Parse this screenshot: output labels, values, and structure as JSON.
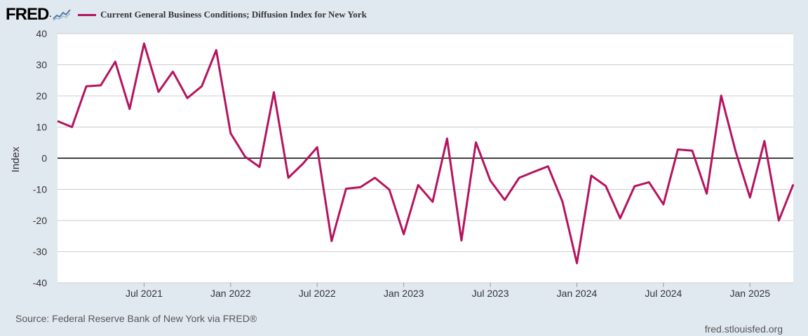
{
  "header": {
    "logo_text": "FRED",
    "logo_icon": "line-chart-icon"
  },
  "colors": {
    "background": "#e1e9f0",
    "plot_background": "#ffffff",
    "series": "#b5135f",
    "grid": "#cccccc",
    "zero_line": "#000000"
  },
  "footer": {
    "source": "Source: Federal Reserve Bank of New York via FRED®",
    "site": "fred.stlouisfed.org"
  },
  "chart_data": {
    "type": "line",
    "title": "",
    "xlabel": "",
    "ylabel": "Index",
    "ylim": [
      -40,
      40
    ],
    "xlim": [
      "2021-01",
      "2025-04"
    ],
    "yticks": [
      40,
      30,
      20,
      10,
      0,
      -10,
      -20,
      -30,
      -40
    ],
    "xticks": [
      {
        "date": "2021-07",
        "label": "Jul 2021"
      },
      {
        "date": "2022-01",
        "label": "Jan 2022"
      },
      {
        "date": "2022-07",
        "label": "Jul 2022"
      },
      {
        "date": "2023-01",
        "label": "Jan 2023"
      },
      {
        "date": "2023-07",
        "label": "Jul 2023"
      },
      {
        "date": "2024-01",
        "label": "Jan 2024"
      },
      {
        "date": "2024-07",
        "label": "Jul 2024"
      },
      {
        "date": "2025-01",
        "label": "Jan 2025"
      }
    ],
    "grid": true,
    "legend_position": "top-left",
    "series": [
      {
        "name": "Current General Business Conditions; Diffusion Index for New York",
        "x": [
          "2021-01",
          "2021-02",
          "2021-03",
          "2021-04",
          "2021-05",
          "2021-06",
          "2021-07",
          "2021-08",
          "2021-09",
          "2021-10",
          "2021-11",
          "2021-12",
          "2022-01",
          "2022-02",
          "2022-03",
          "2022-04",
          "2022-05",
          "2022-06",
          "2022-07",
          "2022-08",
          "2022-09",
          "2022-10",
          "2022-11",
          "2022-12",
          "2023-01",
          "2023-02",
          "2023-03",
          "2023-04",
          "2023-05",
          "2023-06",
          "2023-07",
          "2023-08",
          "2023-09",
          "2023-10",
          "2023-11",
          "2023-12",
          "2024-01",
          "2024-02",
          "2024-03",
          "2024-04",
          "2024-05",
          "2024-06",
          "2024-07",
          "2024-08",
          "2024-09",
          "2024-10",
          "2024-11",
          "2024-12",
          "2025-01",
          "2025-02",
          "2025-03",
          "2025-04"
        ],
        "y": [
          11.9,
          10.0,
          23.1,
          23.4,
          31.0,
          15.8,
          36.8,
          21.3,
          27.8,
          19.3,
          23.1,
          34.7,
          8.0,
          0.5,
          -2.8,
          21.2,
          -6.3,
          -1.8,
          3.5,
          -26.6,
          -9.8,
          -9.3,
          -6.3,
          -10.1,
          -24.4,
          -8.6,
          -14.0,
          6.3,
          -26.4,
          5.1,
          -7.2,
          -13.4,
          -6.3,
          -4.4,
          -2.6,
          -13.9,
          -33.7,
          -5.6,
          -8.9,
          -19.3,
          -9.0,
          -7.7,
          -14.8,
          2.8,
          2.4,
          -11.4,
          20.1,
          2.3,
          -12.6,
          5.5,
          -20.0,
          -8.4
        ]
      }
    ]
  }
}
